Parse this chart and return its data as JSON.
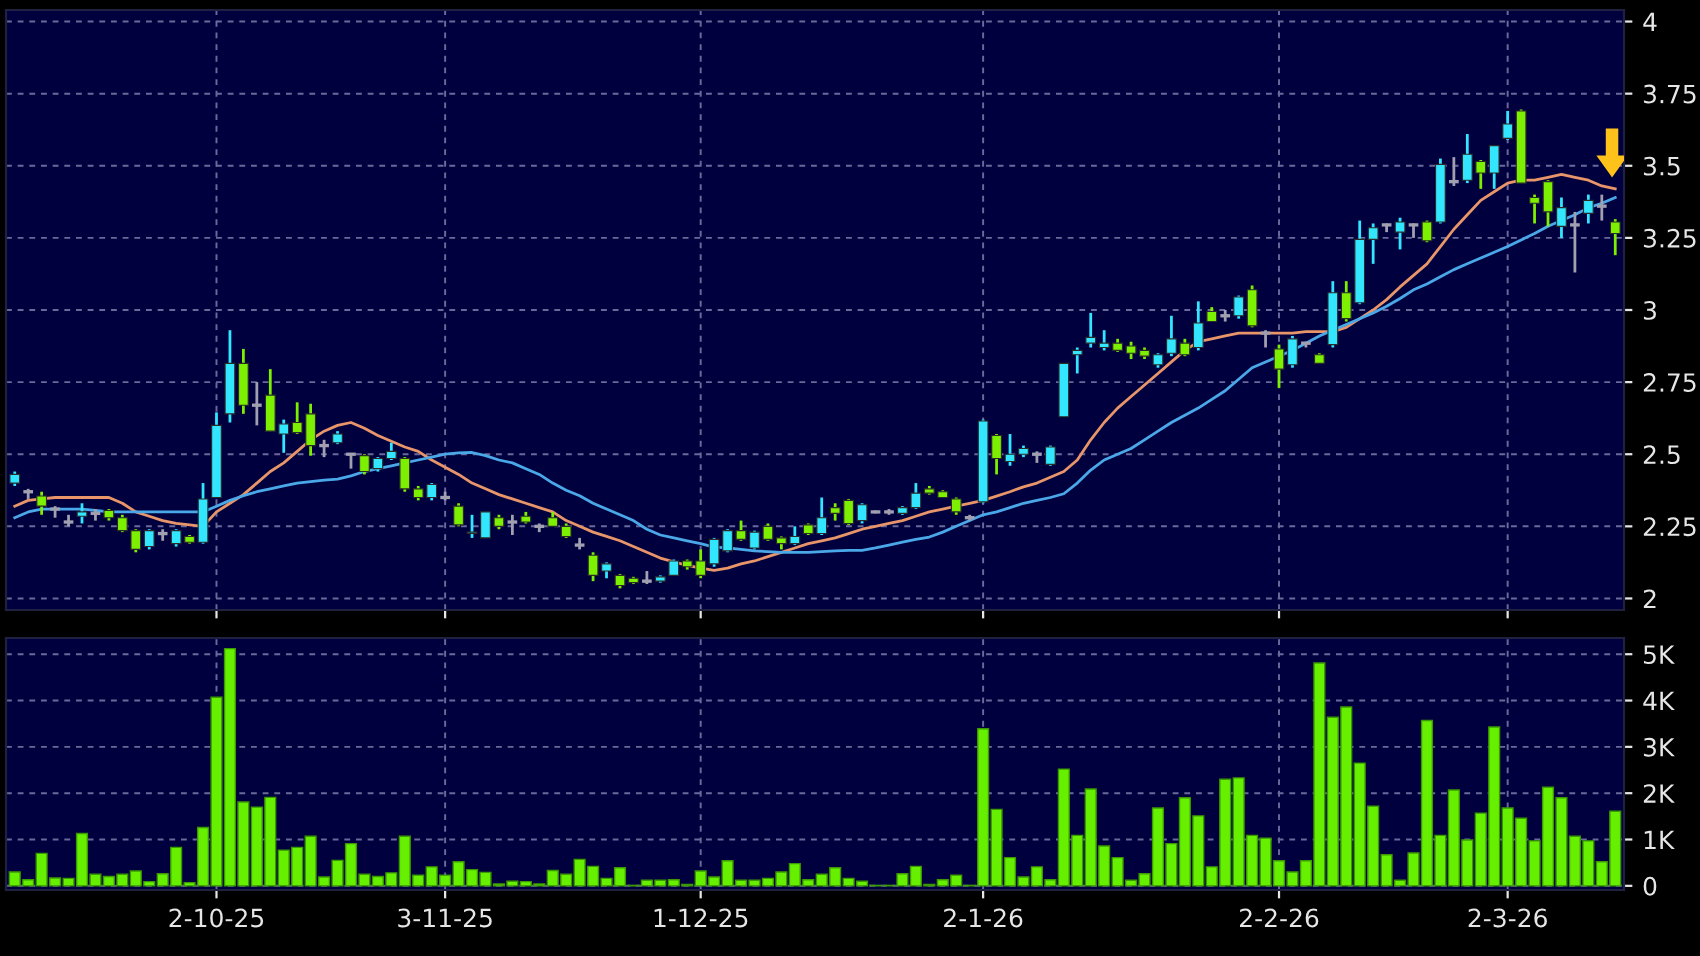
{
  "chart_data": [
    {
      "type": "candlestick",
      "tick_labels": "y",
      "grid": true,
      "ylim": [
        1.96,
        4.04
      ],
      "yticks": [
        2,
        2.25,
        2.5,
        2.75,
        3,
        3.25,
        3.5,
        3.75,
        4
      ],
      "categories": [
        null,
        null,
        null,
        null,
        null,
        null,
        null,
        null,
        null,
        null,
        null,
        null,
        null,
        null,
        null,
        null,
        null,
        null,
        null,
        null,
        null,
        null,
        null,
        null,
        null,
        null,
        null,
        null,
        null,
        null,
        null,
        null,
        null,
        null,
        null,
        null,
        null,
        null,
        null,
        null,
        null,
        null,
        null,
        null,
        null,
        null,
        null,
        null,
        null,
        null,
        null,
        null,
        null,
        null,
        null,
        null,
        null,
        null,
        null,
        null,
        null,
        null,
        null,
        null,
        null,
        null,
        null,
        null,
        null,
        null,
        null,
        null,
        null,
        null,
        null,
        null,
        null,
        null,
        null,
        null,
        null,
        null,
        null,
        null,
        null,
        null,
        null,
        null,
        null,
        null,
        null,
        null,
        null,
        null,
        null,
        null,
        null,
        null,
        null,
        null,
        null,
        null,
        null,
        null,
        null,
        null,
        null,
        null,
        null,
        null,
        null,
        null,
        null,
        null,
        null,
        null,
        null,
        null,
        null,
        null
      ],
      "ohlc": [
        [
          2.4,
          2.44,
          2.39,
          2.43
        ],
        [
          2.37,
          2.38,
          2.345,
          2.37
        ],
        [
          2.355,
          2.37,
          2.29,
          2.32
        ],
        [
          2.31,
          2.32,
          2.28,
          2.31
        ],
        [
          2.265,
          2.29,
          2.25,
          2.265
        ],
        [
          2.285,
          2.33,
          2.26,
          2.3
        ],
        [
          2.295,
          2.31,
          2.27,
          2.295
        ],
        [
          2.305,
          2.31,
          2.27,
          2.28
        ],
        [
          2.28,
          2.29,
          2.23,
          2.235
        ],
        [
          2.235,
          2.24,
          2.16,
          2.17
        ],
        [
          2.18,
          2.24,
          2.17,
          2.235
        ],
        [
          2.225,
          2.24,
          2.2,
          2.225
        ],
        [
          2.19,
          2.24,
          2.18,
          2.235
        ],
        [
          2.215,
          2.22,
          2.19,
          2.195
        ],
        [
          2.195,
          2.4,
          2.19,
          2.345
        ],
        [
          2.35,
          2.645,
          2.35,
          2.6
        ],
        [
          2.64,
          2.93,
          2.61,
          2.815
        ],
        [
          2.815,
          2.865,
          2.64,
          2.67
        ],
        [
          2.67,
          2.75,
          2.6,
          2.67
        ],
        [
          2.705,
          2.795,
          2.58,
          2.58
        ],
        [
          2.57,
          2.62,
          2.505,
          2.605
        ],
        [
          2.61,
          2.68,
          2.57,
          2.575
        ],
        [
          2.64,
          2.675,
          2.495,
          2.53
        ],
        [
          2.53,
          2.55,
          2.49,
          2.53
        ],
        [
          2.54,
          2.58,
          2.535,
          2.57
        ],
        [
          2.5,
          2.5,
          2.45,
          2.5
        ],
        [
          2.495,
          2.5,
          2.43,
          2.44
        ],
        [
          2.45,
          2.49,
          2.44,
          2.485
        ],
        [
          2.485,
          2.54,
          2.48,
          2.51
        ],
        [
          2.485,
          2.49,
          2.37,
          2.38
        ],
        [
          2.38,
          2.39,
          2.34,
          2.35
        ],
        [
          2.35,
          2.4,
          2.34,
          2.395
        ],
        [
          2.35,
          2.37,
          2.34,
          2.35
        ],
        [
          2.32,
          2.33,
          2.25,
          2.255
        ],
        [
          2.225,
          2.29,
          2.21,
          2.23
        ],
        [
          2.21,
          2.3,
          2.21,
          2.3
        ],
        [
          2.28,
          2.29,
          2.24,
          2.25
        ],
        [
          2.265,
          2.29,
          2.22,
          2.265
        ],
        [
          2.285,
          2.3,
          2.26,
          2.265
        ],
        [
          2.25,
          2.26,
          2.23,
          2.25
        ],
        [
          2.28,
          2.3,
          2.25,
          2.25
        ],
        [
          2.25,
          2.26,
          2.21,
          2.215
        ],
        [
          2.185,
          2.21,
          2.17,
          2.185
        ],
        [
          2.15,
          2.16,
          2.06,
          2.08
        ],
        [
          2.095,
          2.125,
          2.07,
          2.12
        ],
        [
          2.08,
          2.085,
          2.035,
          2.045
        ],
        [
          2.07,
          2.075,
          2.05,
          2.055
        ],
        [
          2.06,
          2.095,
          2.05,
          2.06
        ],
        [
          2.06,
          2.08,
          2.055,
          2.075
        ],
        [
          2.08,
          2.135,
          2.08,
          2.13
        ],
        [
          2.13,
          2.135,
          2.1,
          2.11
        ],
        [
          2.13,
          2.17,
          2.07,
          2.08
        ],
        [
          2.12,
          2.21,
          2.11,
          2.205
        ],
        [
          2.165,
          2.24,
          2.16,
          2.235
        ],
        [
          2.235,
          2.27,
          2.2,
          2.205
        ],
        [
          2.175,
          2.235,
          2.17,
          2.23
        ],
        [
          2.25,
          2.26,
          2.2,
          2.205
        ],
        [
          2.21,
          2.215,
          2.17,
          2.19
        ],
        [
          2.19,
          2.25,
          2.185,
          2.215
        ],
        [
          2.255,
          2.26,
          2.22,
          2.225
        ],
        [
          2.225,
          2.35,
          2.22,
          2.28
        ],
        [
          2.315,
          2.33,
          2.27,
          2.295
        ],
        [
          2.34,
          2.345,
          2.255,
          2.26
        ],
        [
          2.27,
          2.33,
          2.26,
          2.325
        ],
        [
          2.3,
          2.305,
          2.295,
          2.3
        ],
        [
          2.3,
          2.31,
          2.29,
          2.3
        ],
        [
          2.295,
          2.32,
          2.29,
          2.315
        ],
        [
          2.315,
          2.4,
          2.31,
          2.365
        ],
        [
          2.38,
          2.39,
          2.36,
          2.365
        ],
        [
          2.37,
          2.375,
          2.35,
          2.35
        ],
        [
          2.345,
          2.35,
          2.29,
          2.3
        ],
        [
          2.28,
          2.29,
          2.27,
          2.28
        ],
        [
          2.335,
          2.62,
          2.33,
          2.615
        ],
        [
          2.565,
          2.57,
          2.43,
          2.485
        ],
        [
          2.475,
          2.57,
          2.46,
          2.5
        ],
        [
          2.5,
          2.53,
          2.49,
          2.52
        ],
        [
          2.5,
          2.51,
          2.47,
          2.5
        ],
        [
          2.465,
          2.53,
          2.46,
          2.525
        ],
        [
          2.63,
          2.815,
          2.63,
          2.815
        ],
        [
          2.845,
          2.87,
          2.78,
          2.86
        ],
        [
          2.885,
          2.99,
          2.87,
          2.905
        ],
        [
          2.87,
          2.93,
          2.86,
          2.885
        ],
        [
          2.885,
          2.9,
          2.855,
          2.86
        ],
        [
          2.875,
          2.89,
          2.83,
          2.85
        ],
        [
          2.86,
          2.87,
          2.83,
          2.84
        ],
        [
          2.81,
          2.85,
          2.8,
          2.845
        ],
        [
          2.85,
          2.98,
          2.84,
          2.9
        ],
        [
          2.885,
          2.9,
          2.84,
          2.845
        ],
        [
          2.87,
          3.03,
          2.86,
          2.955
        ],
        [
          2.995,
          3.01,
          2.96,
          2.96
        ],
        [
          2.98,
          3.0,
          2.96,
          2.98
        ],
        [
          2.98,
          3.05,
          2.97,
          3.045
        ],
        [
          3.07,
          3.085,
          2.94,
          2.945
        ],
        [
          2.92,
          2.93,
          2.87,
          2.92
        ],
        [
          2.865,
          2.88,
          2.73,
          2.795
        ],
        [
          2.81,
          2.91,
          2.8,
          2.9
        ],
        [
          2.885,
          2.89,
          2.87,
          2.885
        ],
        [
          2.845,
          2.85,
          2.815,
          2.815
        ],
        [
          2.88,
          3.1,
          2.87,
          3.06
        ],
        [
          3.06,
          3.1,
          2.96,
          2.97
        ],
        [
          3.025,
          3.31,
          3.02,
          3.245
        ],
        [
          3.245,
          3.3,
          3.16,
          3.285
        ],
        [
          3.295,
          3.3,
          3.27,
          3.295
        ],
        [
          3.27,
          3.32,
          3.21,
          3.305
        ],
        [
          3.295,
          3.3,
          3.25,
          3.295
        ],
        [
          3.305,
          3.31,
          3.235,
          3.24
        ],
        [
          3.305,
          3.525,
          3.3,
          3.505
        ],
        [
          3.445,
          3.53,
          3.43,
          3.445
        ],
        [
          3.45,
          3.61,
          3.44,
          3.54
        ],
        [
          3.515,
          3.52,
          3.42,
          3.475
        ],
        [
          3.475,
          3.57,
          3.42,
          3.57
        ],
        [
          3.595,
          3.69,
          3.59,
          3.645
        ],
        [
          3.69,
          3.695,
          3.44,
          3.44
        ],
        [
          3.39,
          3.4,
          3.3,
          3.37
        ],
        [
          3.445,
          3.45,
          3.29,
          3.34
        ],
        [
          3.29,
          3.39,
          3.25,
          3.355
        ],
        [
          3.295,
          3.34,
          3.13,
          3.295
        ],
        [
          3.335,
          3.4,
          3.3,
          3.38
        ],
        [
          3.36,
          3.4,
          3.31,
          3.36
        ],
        [
          3.305,
          3.315,
          3.19,
          3.265
        ]
      ],
      "colors": [
        "#33e6ff",
        "#a0a0b0",
        "#7cf000",
        "#a0a0b0",
        "#a0a0b0",
        "#33e6ff",
        "#a0a0b0",
        "#7cf000",
        "#7cf000",
        "#7cf000",
        "#33e6ff",
        "#a0a0b0",
        "#33e6ff",
        "#7cf000",
        "#33e6ff",
        "#33e6ff",
        "#33e6ff",
        "#7cf000",
        "#a0a0b0",
        "#7cf000",
        "#33e6ff",
        "#7cf000",
        "#7cf000",
        "#a0a0b0",
        "#33e6ff",
        "#a0a0b0",
        "#7cf000",
        "#33e6ff",
        "#33e6ff",
        "#7cf000",
        "#7cf000",
        "#33e6ff",
        "#a0a0b0",
        "#7cf000",
        "#33e6ff",
        "#33e6ff",
        "#7cf000",
        "#a0a0b0",
        "#7cf000",
        "#a0a0b0",
        "#7cf000",
        "#7cf000",
        "#a0a0b0",
        "#7cf000",
        "#33e6ff",
        "#7cf000",
        "#7cf000",
        "#a0a0b0",
        "#33e6ff",
        "#33e6ff",
        "#7cf000",
        "#7cf000",
        "#33e6ff",
        "#33e6ff",
        "#7cf000",
        "#33e6ff",
        "#7cf000",
        "#7cf000",
        "#33e6ff",
        "#7cf000",
        "#33e6ff",
        "#7cf000",
        "#7cf000",
        "#33e6ff",
        "#a0a0b0",
        "#a0a0b0",
        "#33e6ff",
        "#33e6ff",
        "#7cf000",
        "#7cf000",
        "#7cf000",
        "#a0a0b0",
        "#33e6ff",
        "#7cf000",
        "#33e6ff",
        "#33e6ff",
        "#a0a0b0",
        "#33e6ff",
        "#33e6ff",
        "#33e6ff",
        "#33e6ff",
        "#33e6ff",
        "#7cf000",
        "#7cf000",
        "#7cf000",
        "#33e6ff",
        "#33e6ff",
        "#7cf000",
        "#33e6ff",
        "#7cf000",
        "#a0a0b0",
        "#33e6ff",
        "#7cf000",
        "#a0a0b0",
        "#7cf000",
        "#33e6ff",
        "#a0a0b0",
        "#7cf000",
        "#33e6ff",
        "#7cf000",
        "#33e6ff",
        "#33e6ff",
        "#a0a0b0",
        "#33e6ff",
        "#a0a0b0",
        "#7cf000",
        "#33e6ff",
        "#a0a0b0",
        "#33e6ff",
        "#7cf000",
        "#33e6ff",
        "#33e6ff",
        "#7cf000",
        "#7cf000",
        "#7cf000",
        "#33e6ff",
        "#a0a0b0",
        "#33e6ff",
        "#a0a0b0",
        "#7cf000"
      ],
      "series": [
        {
          "type": "line",
          "color": "#e8956a",
          "values": [
            2.32,
            2.34,
            2.345,
            2.35,
            2.35,
            2.35,
            2.35,
            2.35,
            2.33,
            2.3,
            2.285,
            2.27,
            2.26,
            2.255,
            2.25,
            2.3,
            2.33,
            2.36,
            2.4,
            2.44,
            2.47,
            2.51,
            2.55,
            2.58,
            2.6,
            2.61,
            2.59,
            2.565,
            2.545,
            2.525,
            2.51,
            2.48,
            2.455,
            2.43,
            2.4,
            2.38,
            2.36,
            2.345,
            2.33,
            2.315,
            2.3,
            2.27,
            2.25,
            2.23,
            2.215,
            2.2,
            2.18,
            2.16,
            2.14,
            2.127,
            2.115,
            2.105,
            2.097,
            2.105,
            2.12,
            2.13,
            2.145,
            2.16,
            2.175,
            2.19,
            2.2,
            2.21,
            2.225,
            2.24,
            2.25,
            2.26,
            2.27,
            2.285,
            2.3,
            2.31,
            2.32,
            2.33,
            2.34,
            2.355,
            2.37,
            2.387,
            2.4,
            2.42,
            2.44,
            2.48,
            2.55,
            2.61,
            2.66,
            2.7,
            2.74,
            2.78,
            2.82,
            2.86,
            2.89,
            2.9,
            2.91,
            2.92,
            2.92,
            2.92,
            2.92,
            2.92,
            2.925,
            2.925,
            2.925,
            2.94,
            2.97,
            3.0,
            3.036,
            3.08,
            3.12,
            3.16,
            3.22,
            3.28,
            3.33,
            3.38,
            3.41,
            3.44,
            3.45,
            3.45,
            3.46,
            3.47,
            3.46,
            3.45,
            3.43,
            3.42
          ]
        },
        {
          "type": "line",
          "color": "#4aa8e8",
          "values": [
            2.28,
            2.3,
            2.31,
            2.31,
            2.31,
            2.31,
            2.305,
            2.3,
            2.3,
            2.3,
            2.3,
            2.3,
            2.3,
            2.3,
            2.3,
            2.32,
            2.34,
            2.356,
            2.37,
            2.38,
            2.39,
            2.4,
            2.405,
            2.41,
            2.414,
            2.425,
            2.44,
            2.45,
            2.46,
            2.47,
            2.48,
            2.49,
            2.5,
            2.505,
            2.506,
            2.495,
            2.48,
            2.47,
            2.45,
            2.43,
            2.4,
            2.375,
            2.356,
            2.33,
            2.31,
            2.29,
            2.27,
            2.24,
            2.22,
            2.21,
            2.2,
            2.19,
            2.178,
            2.175,
            2.17,
            2.165,
            2.162,
            2.16,
            2.16,
            2.16,
            2.162,
            2.165,
            2.167,
            2.167,
            2.175,
            2.185,
            2.195,
            2.205,
            2.213,
            2.23,
            2.25,
            2.27,
            2.29,
            2.3,
            2.315,
            2.33,
            2.34,
            2.35,
            2.363,
            2.4,
            2.445,
            2.48,
            2.5,
            2.52,
            2.55,
            2.58,
            2.61,
            2.635,
            2.66,
            2.69,
            2.72,
            2.76,
            2.8,
            2.82,
            2.84,
            2.86,
            2.885,
            2.91,
            2.93,
            2.95,
            2.97,
            2.99,
            3.013,
            3.04,
            3.07,
            3.09,
            3.115,
            3.14,
            3.16,
            3.18,
            3.2,
            3.22,
            3.243,
            3.265,
            3.29,
            3.31,
            3.33,
            3.354,
            3.37,
            3.39
          ]
        }
      ]
    },
    {
      "type": "bar",
      "grid": true,
      "color": "#66f000",
      "ylim": [
        -90,
        5350
      ],
      "yticks": [
        {
          "value": 0,
          "label": "0"
        },
        {
          "value": 1000,
          "label": "1K"
        },
        {
          "value": 2000,
          "label": "2K"
        },
        {
          "value": 3000,
          "label": "3K"
        },
        {
          "value": 4000,
          "label": "4K"
        },
        {
          "value": 5000,
          "label": "5K"
        }
      ],
      "categories": [
        null,
        null,
        null,
        null,
        null,
        null,
        null,
        null,
        null,
        null,
        null,
        null,
        null,
        null,
        null,
        "2-10-25",
        null,
        null,
        null,
        null,
        null,
        null,
        null,
        null,
        null,
        null,
        null,
        null,
        null,
        null,
        null,
        null,
        "3-11-25",
        null,
        null,
        null,
        null,
        null,
        null,
        null,
        null,
        null,
        null,
        null,
        null,
        null,
        null,
        null,
        null,
        null,
        null,
        "1-12-25",
        null,
        null,
        null,
        null,
        null,
        null,
        null,
        null,
        null,
        null,
        null,
        null,
        null,
        null,
        null,
        null,
        null,
        null,
        null,
        null,
        "2-1-26",
        null,
        null,
        null,
        null,
        null,
        null,
        null,
        null,
        null,
        null,
        null,
        null,
        null,
        null,
        null,
        null,
        null,
        null,
        null,
        null,
        null,
        "2-2-26",
        null,
        null,
        null,
        null,
        null,
        null,
        null,
        null,
        null,
        null,
        null,
        null,
        null,
        null,
        null,
        null,
        "2-3-26",
        null,
        null,
        null,
        null,
        null,
        null,
        null,
        null
      ],
      "values": [
        300,
        130,
        700,
        170,
        160,
        1130,
        250,
        200,
        250,
        320,
        90,
        260,
        830,
        70,
        1260,
        4070,
        5120,
        1810,
        1700,
        1910,
        770,
        830,
        1070,
        190,
        550,
        910,
        250,
        200,
        280,
        1070,
        230,
        410,
        230,
        520,
        350,
        290,
        40,
        100,
        90,
        40,
        330,
        250,
        570,
        420,
        160,
        390,
        10,
        120,
        120,
        130,
        30,
        320,
        190,
        540,
        120,
        120,
        160,
        300,
        480,
        130,
        250,
        390,
        160,
        100,
        10,
        10,
        260,
        420,
        30,
        130,
        230,
        10,
        3390,
        1650,
        610,
        190,
        410,
        130,
        2520,
        1090,
        2090,
        860,
        610,
        120,
        260,
        1680,
        910,
        1900,
        1510,
        410,
        2300,
        2330,
        1090,
        1030,
        540,
        300,
        540,
        4810,
        3640,
        3860,
        2650,
        1720,
        670,
        120,
        710,
        3570,
        1090,
        2070,
        990,
        1570,
        3430,
        1680,
        1460,
        970,
        2130,
        1900,
        1070,
        970,
        520,
        1610
      ]
    }
  ]
}
